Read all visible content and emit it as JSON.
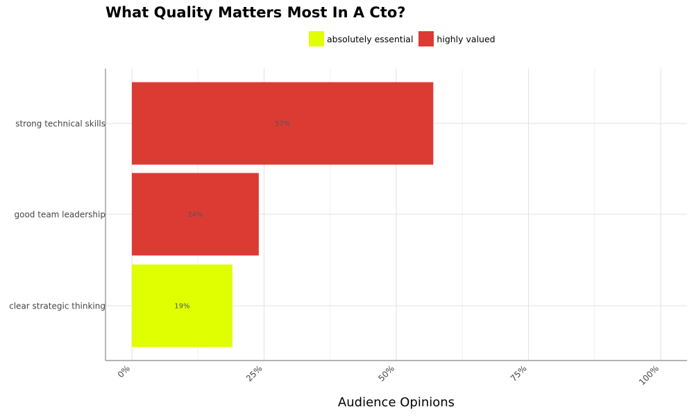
{
  "chart_data": {
    "type": "bar",
    "orientation": "horizontal",
    "title": "What Quality Matters Most In A Cto?",
    "xlabel": "Audience Opinions",
    "ylabel": "",
    "xlim": [
      0,
      100
    ],
    "x_ticks": [
      "0%",
      "25%",
      "50%",
      "75%",
      "100%"
    ],
    "x_tick_values": [
      0,
      25,
      50,
      75,
      100
    ],
    "grid": true,
    "legend_position": "top",
    "legend": [
      {
        "label": "absolutely essential",
        "color": "#e0ff00"
      },
      {
        "label": "highly valued",
        "color": "#dc3b34"
      }
    ],
    "bars": [
      {
        "category": "strong technical skills",
        "value": 57,
        "label": "57%",
        "series": "highly valued"
      },
      {
        "category": "good team leadership",
        "value": 24,
        "label": "24%",
        "series": "highly valued"
      },
      {
        "category": "clear strategic thinking",
        "value": 19,
        "label": "19%",
        "series": "absolutely essential"
      }
    ]
  }
}
